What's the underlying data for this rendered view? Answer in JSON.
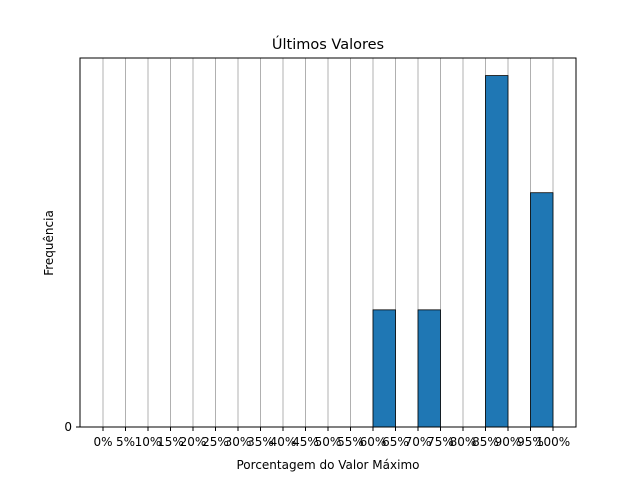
{
  "chart_data": {
    "type": "bar",
    "title": "Últimos Valores",
    "xlabel": "Porcentagem do Valor Máximo",
    "ylabel": "Frequência",
    "categories": [
      "0%",
      "5%",
      "10%",
      "15%",
      "20%",
      "25%",
      "30%",
      "35%",
      "40%",
      "45%",
      "50%",
      "55%",
      "60%",
      "65%",
      "70%",
      "75%",
      "80%",
      "85%",
      "90%",
      "95%",
      "100%"
    ],
    "bins": [
      {
        "from": "60%",
        "to": "65%",
        "value": 1
      },
      {
        "from": "70%",
        "to": "75%",
        "value": 1
      },
      {
        "from": "85%",
        "to": "90%",
        "value": 3
      },
      {
        "from": "95%",
        "to": "100%",
        "value": 2
      }
    ],
    "ylim": [
      0,
      3.15
    ],
    "yticks": [
      "0"
    ],
    "grid": "vertical",
    "bar_color": "#1f77b4"
  }
}
